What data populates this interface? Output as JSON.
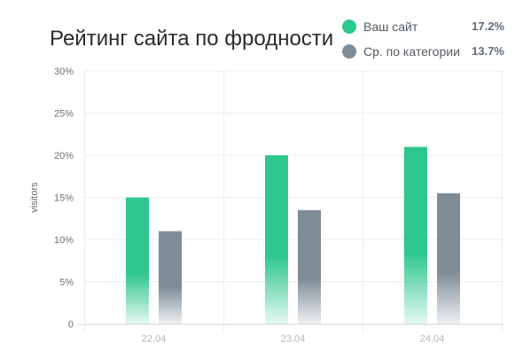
{
  "title": "Рейтинг сайта по фродности",
  "legend": [
    {
      "label": "Ваш сайт",
      "value": "17.2%",
      "color": "#2ec78e"
    },
    {
      "label": "Ср. по категории",
      "value": "13.7%",
      "color": "#7d8c97"
    }
  ],
  "chart_data": {
    "type": "bar",
    "title": "Рейтинг сайта по фродности",
    "xlabel": "",
    "ylabel": "visitors",
    "categories": [
      "22.04",
      "23.04",
      "24.04"
    ],
    "series": [
      {
        "name": "Ваш сайт",
        "values": [
          15,
          20,
          21
        ],
        "color": "#2ec78e"
      },
      {
        "name": "Ср. по категории",
        "values": [
          11,
          13.5,
          15.5
        ],
        "color": "#7d8c97"
      }
    ],
    "ylim": [
      0,
      30
    ],
    "yticks": [
      0,
      5,
      10,
      15,
      20,
      25,
      30
    ],
    "ytick_labels": [
      "0",
      "5%",
      "10%",
      "15%",
      "20%",
      "25%",
      "30%"
    ],
    "grid": true,
    "legend_position": "top-right"
  }
}
